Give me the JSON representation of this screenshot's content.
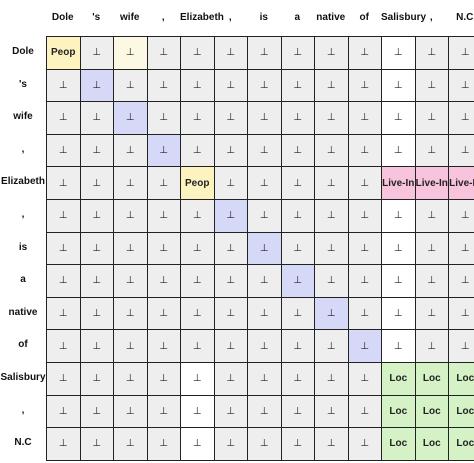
{
  "tokens": [
    "Dole",
    "'s",
    "wife",
    ",",
    "Elizabeth",
    ",",
    "is",
    "a",
    "native",
    "of",
    "Salisbury",
    ",",
    "N.C"
  ],
  "null_symbol": "⊥",
  "colors": {
    "default": "#eeeeee",
    "white": "#ffffff",
    "peop": "#fcf3c0",
    "peop_faint": "#fdf8e3",
    "diag": "#d6d8f7",
    "live_in": "#f8c3dc",
    "loc": "#d5f2c6",
    "loc_faint": "#eaf7e2"
  },
  "cells": [
    [
      {
        "t": "Peop",
        "c": "peop",
        "b": 1
      },
      {
        "t": "⊥",
        "c": "default"
      },
      {
        "t": "⊥",
        "c": "peop_faint"
      },
      {
        "t": "⊥",
        "c": "default"
      },
      {
        "t": "⊥",
        "c": "default"
      },
      {
        "t": "⊥",
        "c": "default"
      },
      {
        "t": "⊥",
        "c": "default"
      },
      {
        "t": "⊥",
        "c": "default"
      },
      {
        "t": "⊥",
        "c": "default"
      },
      {
        "t": "⊥",
        "c": "default"
      },
      {
        "t": "⊥",
        "c": "white"
      },
      {
        "t": "⊥",
        "c": "default"
      },
      {
        "t": "⊥",
        "c": "default"
      }
    ],
    [
      {
        "t": "⊥",
        "c": "default"
      },
      {
        "t": "⊥",
        "c": "diag"
      },
      {
        "t": "⊥",
        "c": "default"
      },
      {
        "t": "⊥",
        "c": "default"
      },
      {
        "t": "⊥",
        "c": "default"
      },
      {
        "t": "⊥",
        "c": "default"
      },
      {
        "t": "⊥",
        "c": "default"
      },
      {
        "t": "⊥",
        "c": "default"
      },
      {
        "t": "⊥",
        "c": "default"
      },
      {
        "t": "⊥",
        "c": "default"
      },
      {
        "t": "⊥",
        "c": "white"
      },
      {
        "t": "⊥",
        "c": "default"
      },
      {
        "t": "⊥",
        "c": "default"
      }
    ],
    [
      {
        "t": "⊥",
        "c": "default"
      },
      {
        "t": "⊥",
        "c": "default"
      },
      {
        "t": "⊥",
        "c": "diag"
      },
      {
        "t": "⊥",
        "c": "default"
      },
      {
        "t": "⊥",
        "c": "default"
      },
      {
        "t": "⊥",
        "c": "default"
      },
      {
        "t": "⊥",
        "c": "default"
      },
      {
        "t": "⊥",
        "c": "default"
      },
      {
        "t": "⊥",
        "c": "default"
      },
      {
        "t": "⊥",
        "c": "default"
      },
      {
        "t": "⊥",
        "c": "white"
      },
      {
        "t": "⊥",
        "c": "default"
      },
      {
        "t": "⊥",
        "c": "default"
      }
    ],
    [
      {
        "t": "⊥",
        "c": "default"
      },
      {
        "t": "⊥",
        "c": "default"
      },
      {
        "t": "⊥",
        "c": "default"
      },
      {
        "t": "⊥",
        "c": "diag"
      },
      {
        "t": "⊥",
        "c": "default"
      },
      {
        "t": "⊥",
        "c": "default"
      },
      {
        "t": "⊥",
        "c": "default"
      },
      {
        "t": "⊥",
        "c": "default"
      },
      {
        "t": "⊥",
        "c": "default"
      },
      {
        "t": "⊥",
        "c": "default"
      },
      {
        "t": "⊥",
        "c": "white"
      },
      {
        "t": "⊥",
        "c": "default"
      },
      {
        "t": "⊥",
        "c": "default"
      }
    ],
    [
      {
        "t": "⊥",
        "c": "default"
      },
      {
        "t": "⊥",
        "c": "default"
      },
      {
        "t": "⊥",
        "c": "default"
      },
      {
        "t": "⊥",
        "c": "default"
      },
      {
        "t": "Peop",
        "c": "peop",
        "b": 1
      },
      {
        "t": "⊥",
        "c": "default"
      },
      {
        "t": "⊥",
        "c": "default"
      },
      {
        "t": "⊥",
        "c": "default"
      },
      {
        "t": "⊥",
        "c": "default"
      },
      {
        "t": "⊥",
        "c": "default"
      },
      {
        "t": "Live-In",
        "c": "live_in",
        "b": 1
      },
      {
        "t": "Live-In",
        "c": "live_in",
        "b": 1
      },
      {
        "t": "Live-In",
        "c": "live_in",
        "b": 1
      }
    ],
    [
      {
        "t": "⊥",
        "c": "default"
      },
      {
        "t": "⊥",
        "c": "default"
      },
      {
        "t": "⊥",
        "c": "default"
      },
      {
        "t": "⊥",
        "c": "default"
      },
      {
        "t": "⊥",
        "c": "default"
      },
      {
        "t": "⊥",
        "c": "diag"
      },
      {
        "t": "⊥",
        "c": "default"
      },
      {
        "t": "⊥",
        "c": "default"
      },
      {
        "t": "⊥",
        "c": "default"
      },
      {
        "t": "⊥",
        "c": "default"
      },
      {
        "t": "⊥",
        "c": "white"
      },
      {
        "t": "⊥",
        "c": "default"
      },
      {
        "t": "⊥",
        "c": "default"
      }
    ],
    [
      {
        "t": "⊥",
        "c": "default"
      },
      {
        "t": "⊥",
        "c": "default"
      },
      {
        "t": "⊥",
        "c": "default"
      },
      {
        "t": "⊥",
        "c": "default"
      },
      {
        "t": "⊥",
        "c": "default"
      },
      {
        "t": "⊥",
        "c": "default"
      },
      {
        "t": "⊥",
        "c": "diag"
      },
      {
        "t": "⊥",
        "c": "default"
      },
      {
        "t": "⊥",
        "c": "default"
      },
      {
        "t": "⊥",
        "c": "default"
      },
      {
        "t": "⊥",
        "c": "white"
      },
      {
        "t": "⊥",
        "c": "default"
      },
      {
        "t": "⊥",
        "c": "default"
      }
    ],
    [
      {
        "t": "⊥",
        "c": "default"
      },
      {
        "t": "⊥",
        "c": "default"
      },
      {
        "t": "⊥",
        "c": "default"
      },
      {
        "t": "⊥",
        "c": "default"
      },
      {
        "t": "⊥",
        "c": "default"
      },
      {
        "t": "⊥",
        "c": "default"
      },
      {
        "t": "⊥",
        "c": "default"
      },
      {
        "t": "⊥",
        "c": "diag"
      },
      {
        "t": "⊥",
        "c": "default"
      },
      {
        "t": "⊥",
        "c": "default"
      },
      {
        "t": "⊥",
        "c": "white"
      },
      {
        "t": "⊥",
        "c": "default"
      },
      {
        "t": "⊥",
        "c": "default"
      }
    ],
    [
      {
        "t": "⊥",
        "c": "default"
      },
      {
        "t": "⊥",
        "c": "default"
      },
      {
        "t": "⊥",
        "c": "default"
      },
      {
        "t": "⊥",
        "c": "default"
      },
      {
        "t": "⊥",
        "c": "default"
      },
      {
        "t": "⊥",
        "c": "default"
      },
      {
        "t": "⊥",
        "c": "default"
      },
      {
        "t": "⊥",
        "c": "default"
      },
      {
        "t": "⊥",
        "c": "diag"
      },
      {
        "t": "⊥",
        "c": "default"
      },
      {
        "t": "⊥",
        "c": "white"
      },
      {
        "t": "⊥",
        "c": "default"
      },
      {
        "t": "⊥",
        "c": "default"
      }
    ],
    [
      {
        "t": "⊥",
        "c": "default"
      },
      {
        "t": "⊥",
        "c": "default"
      },
      {
        "t": "⊥",
        "c": "default"
      },
      {
        "t": "⊥",
        "c": "default"
      },
      {
        "t": "⊥",
        "c": "default"
      },
      {
        "t": "⊥",
        "c": "default"
      },
      {
        "t": "⊥",
        "c": "default"
      },
      {
        "t": "⊥",
        "c": "default"
      },
      {
        "t": "⊥",
        "c": "default"
      },
      {
        "t": "⊥",
        "c": "diag"
      },
      {
        "t": "⊥",
        "c": "white"
      },
      {
        "t": "⊥",
        "c": "default"
      },
      {
        "t": "⊥",
        "c": "default"
      }
    ],
    [
      {
        "t": "⊥",
        "c": "default"
      },
      {
        "t": "⊥",
        "c": "default"
      },
      {
        "t": "⊥",
        "c": "default"
      },
      {
        "t": "⊥",
        "c": "default"
      },
      {
        "t": "⊥",
        "c": "white"
      },
      {
        "t": "⊥",
        "c": "default"
      },
      {
        "t": "⊥",
        "c": "default"
      },
      {
        "t": "⊥",
        "c": "default"
      },
      {
        "t": "⊥",
        "c": "default"
      },
      {
        "t": "⊥",
        "c": "default"
      },
      {
        "t": "Loc",
        "c": "loc",
        "b": 1
      },
      {
        "t": "Loc",
        "c": "loc",
        "b": 1
      },
      {
        "t": "Loc",
        "c": "loc",
        "b": 1
      }
    ],
    [
      {
        "t": "⊥",
        "c": "default"
      },
      {
        "t": "⊥",
        "c": "default"
      },
      {
        "t": "⊥",
        "c": "default"
      },
      {
        "t": "⊥",
        "c": "default"
      },
      {
        "t": "⊥",
        "c": "white"
      },
      {
        "t": "⊥",
        "c": "default"
      },
      {
        "t": "⊥",
        "c": "default"
      },
      {
        "t": "⊥",
        "c": "default"
      },
      {
        "t": "⊥",
        "c": "default"
      },
      {
        "t": "⊥",
        "c": "default"
      },
      {
        "t": "Loc",
        "c": "loc",
        "b": 1
      },
      {
        "t": "Loc",
        "c": "loc",
        "b": 1
      },
      {
        "t": "Loc",
        "c": "loc",
        "b": 1
      }
    ],
    [
      {
        "t": "⊥",
        "c": "default"
      },
      {
        "t": "⊥",
        "c": "default"
      },
      {
        "t": "⊥",
        "c": "default"
      },
      {
        "t": "⊥",
        "c": "default"
      },
      {
        "t": "⊥",
        "c": "white"
      },
      {
        "t": "⊥",
        "c": "default"
      },
      {
        "t": "⊥",
        "c": "default"
      },
      {
        "t": "⊥",
        "c": "default"
      },
      {
        "t": "⊥",
        "c": "default"
      },
      {
        "t": "⊥",
        "c": "default"
      },
      {
        "t": "Loc",
        "c": "loc",
        "b": 1
      },
      {
        "t": "Loc",
        "c": "loc",
        "b": 1
      },
      {
        "t": "Loc",
        "c": "loc",
        "b": 1
      }
    ]
  ]
}
